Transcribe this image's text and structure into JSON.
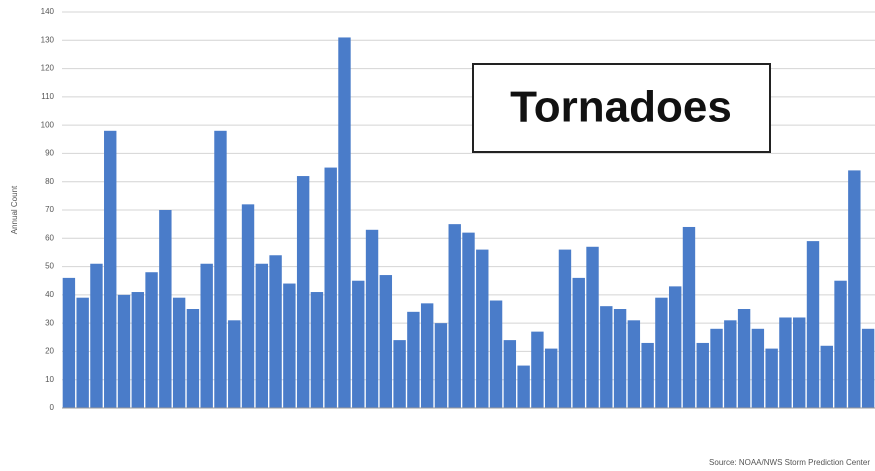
{
  "chart_data": {
    "type": "bar",
    "annotation": "Tornadoes",
    "y_label": "Annual Count",
    "source": "Source: NOAA/NWS Storm Prediction Center",
    "categories": [
      null,
      null,
      null,
      null,
      null,
      null,
      null,
      null,
      null,
      null,
      null,
      null,
      null,
      null,
      null,
      null,
      null,
      null,
      null,
      null,
      null,
      null,
      null,
      null,
      null,
      null,
      null,
      null,
      null,
      null,
      null,
      null,
      null,
      null,
      null,
      null,
      null,
      null,
      null,
      null,
      null,
      null,
      null,
      null,
      null,
      null,
      null,
      null,
      null,
      null,
      null,
      null,
      null,
      null,
      null,
      null,
      null,
      null,
      null
    ],
    "values": [
      46,
      39,
      51,
      98,
      40,
      41,
      48,
      70,
      39,
      35,
      51,
      98,
      31,
      72,
      51,
      54,
      44,
      82,
      41,
      85,
      131,
      45,
      63,
      47,
      24,
      34,
      37,
      30,
      65,
      62,
      56,
      38,
      24,
      15,
      27,
      21,
      56,
      46,
      57,
      36,
      35,
      31,
      23,
      39,
      43,
      64,
      23,
      28,
      31,
      35,
      28,
      21,
      32,
      32,
      59,
      22,
      45,
      84,
      28
    ],
    "color": "#4a7cc9",
    "ylim": [
      0,
      140
    ],
    "yticks": [
      0,
      10,
      20,
      30,
      40,
      50,
      60,
      70,
      80,
      90,
      100,
      110,
      120,
      130,
      140
    ],
    "grid": true
  }
}
